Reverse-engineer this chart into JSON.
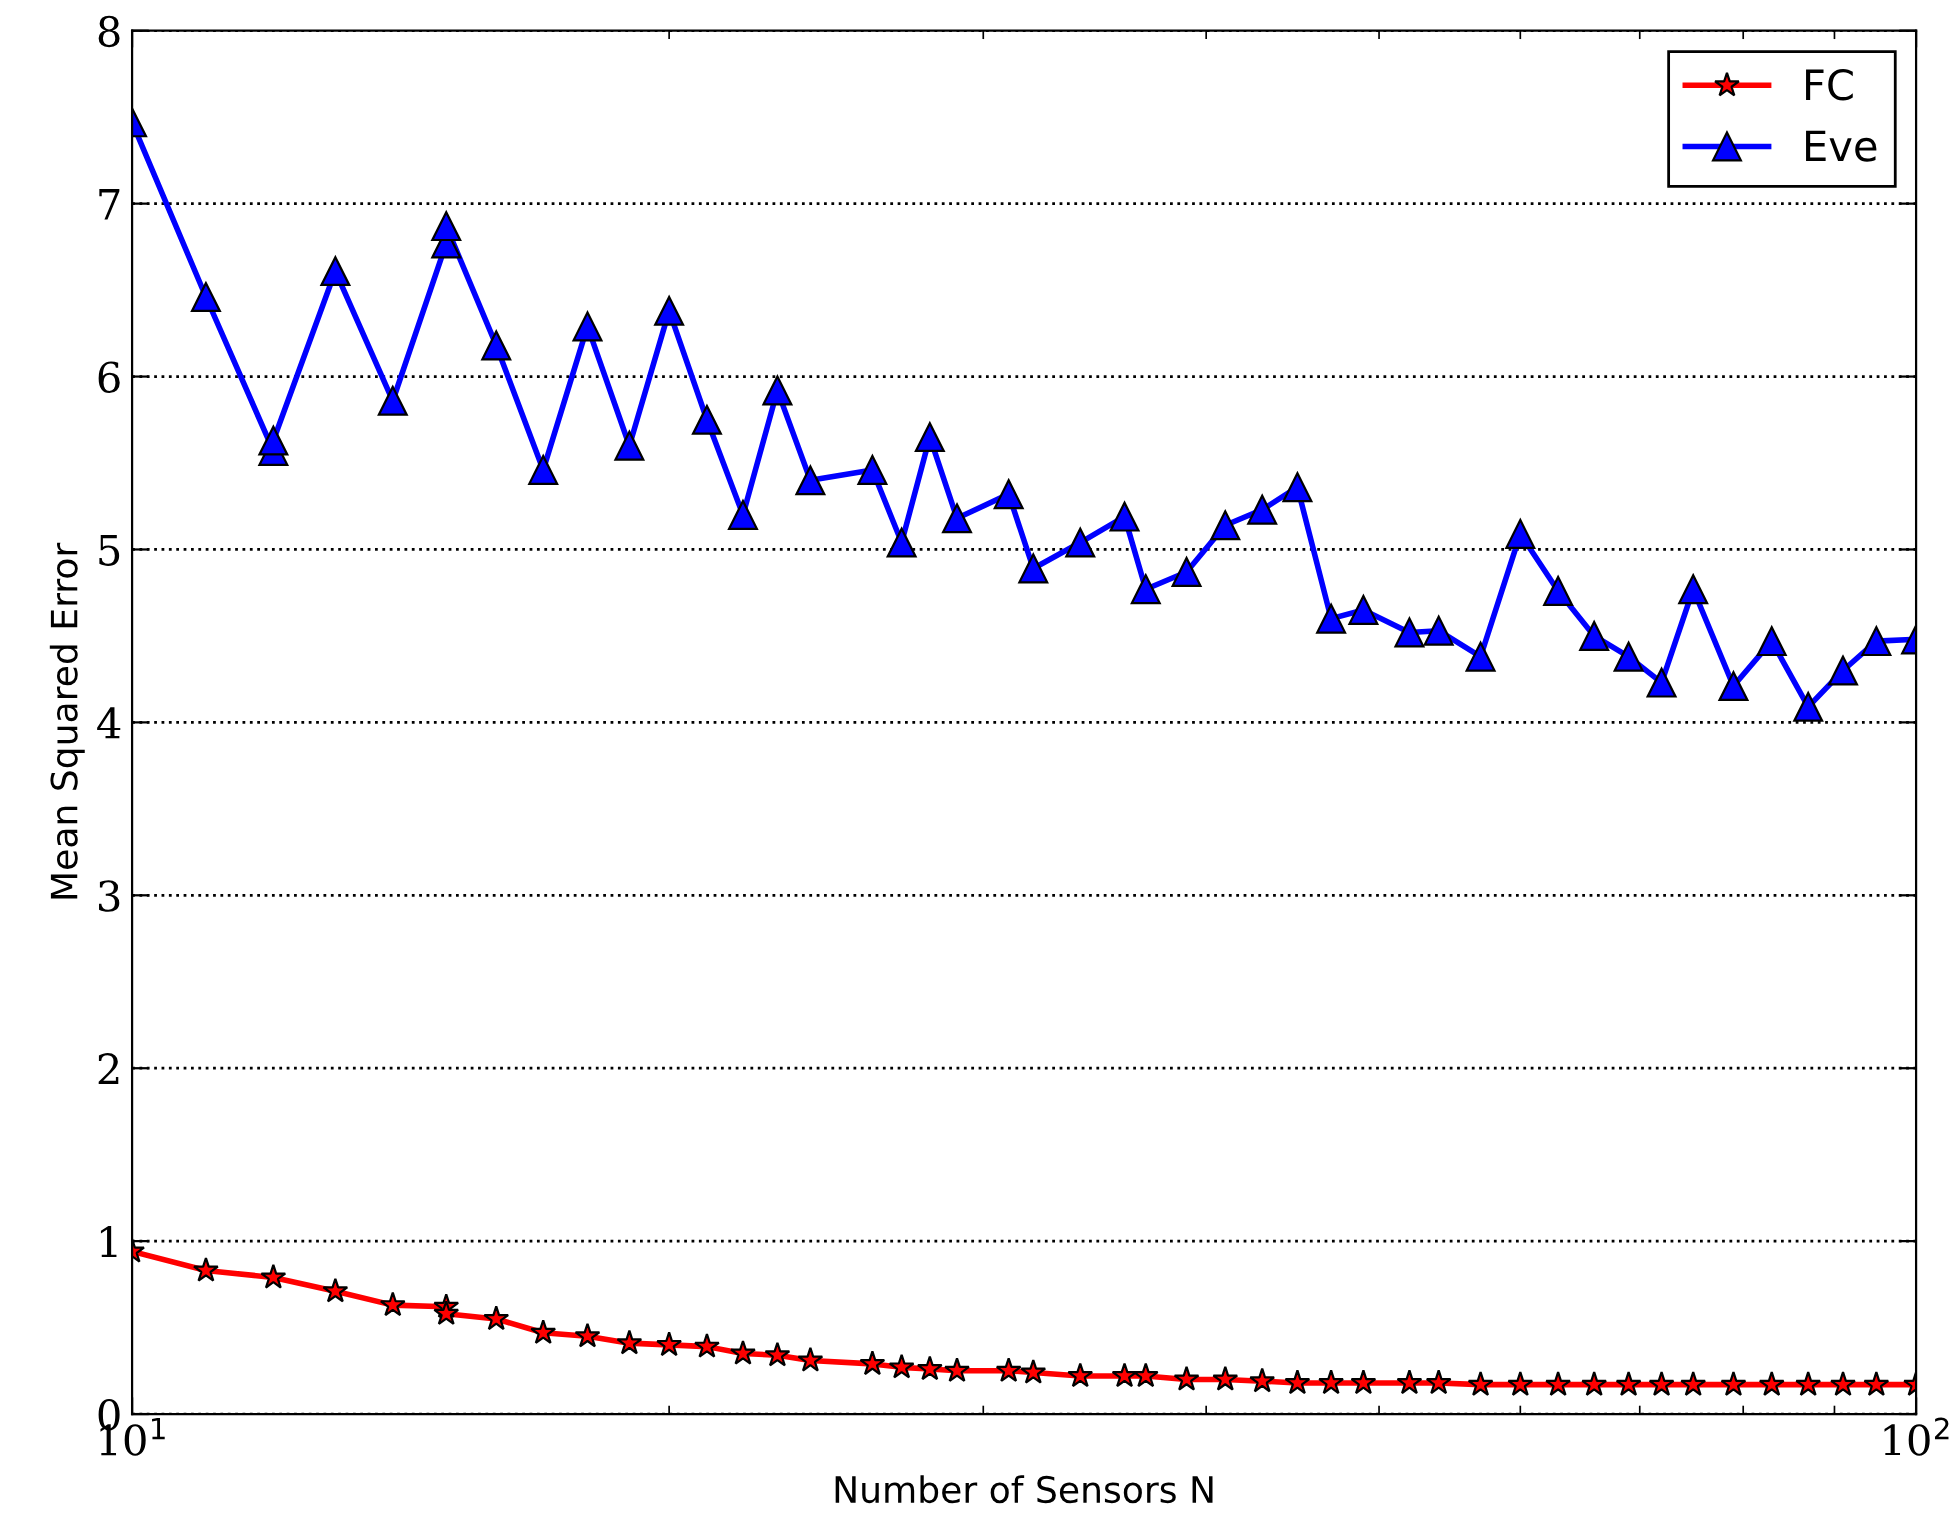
{
  "chart_data": {
    "type": "line",
    "xlabel": "Number of Sensors N",
    "ylabel": "Mean Squared Error",
    "log": "x",
    "xlim": [
      10,
      100
    ],
    "xticks": [
      {
        "value": 10,
        "label": "10$^{1}$"
      },
      {
        "value": 100,
        "label": "10$^{2}$"
      }
    ],
    "ylim": [
      0,
      8
    ],
    "yticks": [
      0,
      1,
      2,
      3,
      4,
      5,
      6,
      7,
      8
    ],
    "grid": "y",
    "legend": "top right",
    "series": [
      {
        "name": "FC",
        "color": "#ff0000",
        "marker": "star",
        "x": [
          10,
          11,
          12,
          13,
          14,
          15,
          15,
          16,
          17,
          18,
          19,
          20,
          21,
          22,
          23,
          24,
          26,
          27,
          28,
          29,
          31,
          32,
          34,
          36,
          37,
          39,
          41,
          43,
          45,
          47,
          49,
          52,
          54,
          57,
          60,
          63,
          66,
          69,
          72,
          75,
          79,
          83,
          87,
          91,
          95,
          100
        ],
        "values": [
          0.94,
          0.83,
          0.79,
          0.71,
          0.63,
          0.62,
          0.58,
          0.55,
          0.47,
          0.45,
          0.41,
          0.4,
          0.39,
          0.35,
          0.34,
          0.31,
          0.29,
          0.27,
          0.26,
          0.25,
          0.25,
          0.24,
          0.22,
          0.22,
          0.22,
          0.2,
          0.2,
          0.19,
          0.18,
          0.18,
          0.18,
          0.18,
          0.18,
          0.17,
          0.17,
          0.17,
          0.17,
          0.17,
          0.17,
          0.17,
          0.17,
          0.17,
          0.17,
          0.17,
          0.17,
          0.17
        ]
      },
      {
        "name": "Eve",
        "color": "#0000ff",
        "marker": "triangle",
        "x": [
          10,
          11,
          12,
          12,
          13,
          14,
          15,
          15,
          16,
          17,
          18,
          19,
          20,
          21,
          22,
          23,
          24,
          26,
          27,
          28,
          29,
          31,
          32,
          34,
          36,
          37,
          39,
          41,
          43,
          45,
          47,
          49,
          52,
          54,
          57,
          60,
          63,
          66,
          69,
          72,
          75,
          79,
          83,
          87,
          91,
          95,
          100
        ],
        "values": [
          7.47,
          6.46,
          5.57,
          5.63,
          6.61,
          5.86,
          6.77,
          6.87,
          6.18,
          5.46,
          6.29,
          5.6,
          6.38,
          5.75,
          5.2,
          5.92,
          5.4,
          5.46,
          5.04,
          5.65,
          5.18,
          5.32,
          4.89,
          5.04,
          5.19,
          4.77,
          4.87,
          5.14,
          5.23,
          5.36,
          4.6,
          4.65,
          4.52,
          4.53,
          4.38,
          5.09,
          4.76,
          4.5,
          4.38,
          4.23,
          4.77,
          4.21,
          4.47,
          4.09,
          4.3,
          4.47,
          4.48
        ]
      }
    ]
  }
}
